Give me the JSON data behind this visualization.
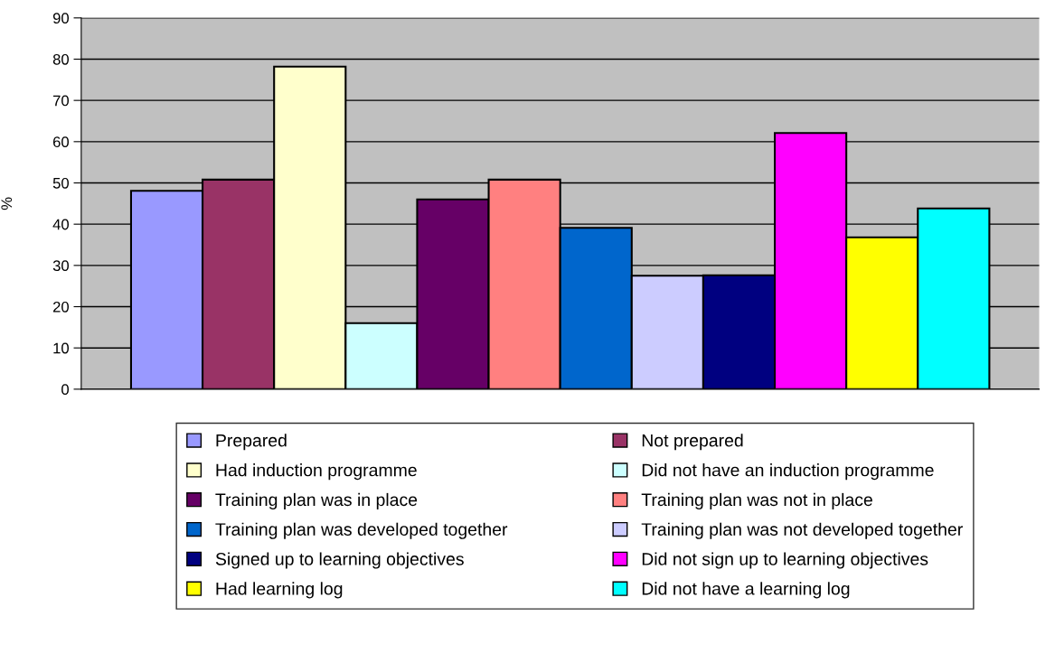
{
  "chart_data": {
    "type": "bar",
    "ylabel": "%",
    "categories": [
      null
    ],
    "ylim": [
      0,
      90
    ],
    "yticks": [
      0,
      10,
      20,
      30,
      40,
      50,
      60,
      70,
      80,
      90
    ],
    "grid": "y",
    "legend": "bottom",
    "series": [
      {
        "name": "Prepared",
        "color": "#9999ff",
        "values": [
          48.1
        ]
      },
      {
        "name": "Not prepared",
        "color": "#993366",
        "values": [
          50.8
        ]
      },
      {
        "name": "Had induction programme",
        "color": "#ffffcc",
        "values": [
          78.2
        ]
      },
      {
        "name": "Did not have an induction programme",
        "color": "#ccffff",
        "values": [
          16.0
        ]
      },
      {
        "name": "Training plan was in place",
        "color": "#660066",
        "values": [
          46.0
        ]
      },
      {
        "name": "Training plan was not in place",
        "color": "#ff8080",
        "values": [
          50.8
        ]
      },
      {
        "name": "Training plan was developed together",
        "color": "#0066cc",
        "values": [
          39.1
        ]
      },
      {
        "name": "Training plan was not developed together",
        "color": "#ccccff",
        "values": [
          27.5
        ]
      },
      {
        "name": "Signed up to learning objectives",
        "color": "#000080",
        "values": [
          27.6
        ]
      },
      {
        "name": "Did not sign up to learning objectives",
        "color": "#ff00ff",
        "values": [
          62.1
        ]
      },
      {
        "name": "Had learning log",
        "color": "#ffff00",
        "values": [
          36.8
        ]
      },
      {
        "name": "Did not have a learning log",
        "color": "#00ffff",
        "values": [
          43.8
        ]
      }
    ]
  }
}
